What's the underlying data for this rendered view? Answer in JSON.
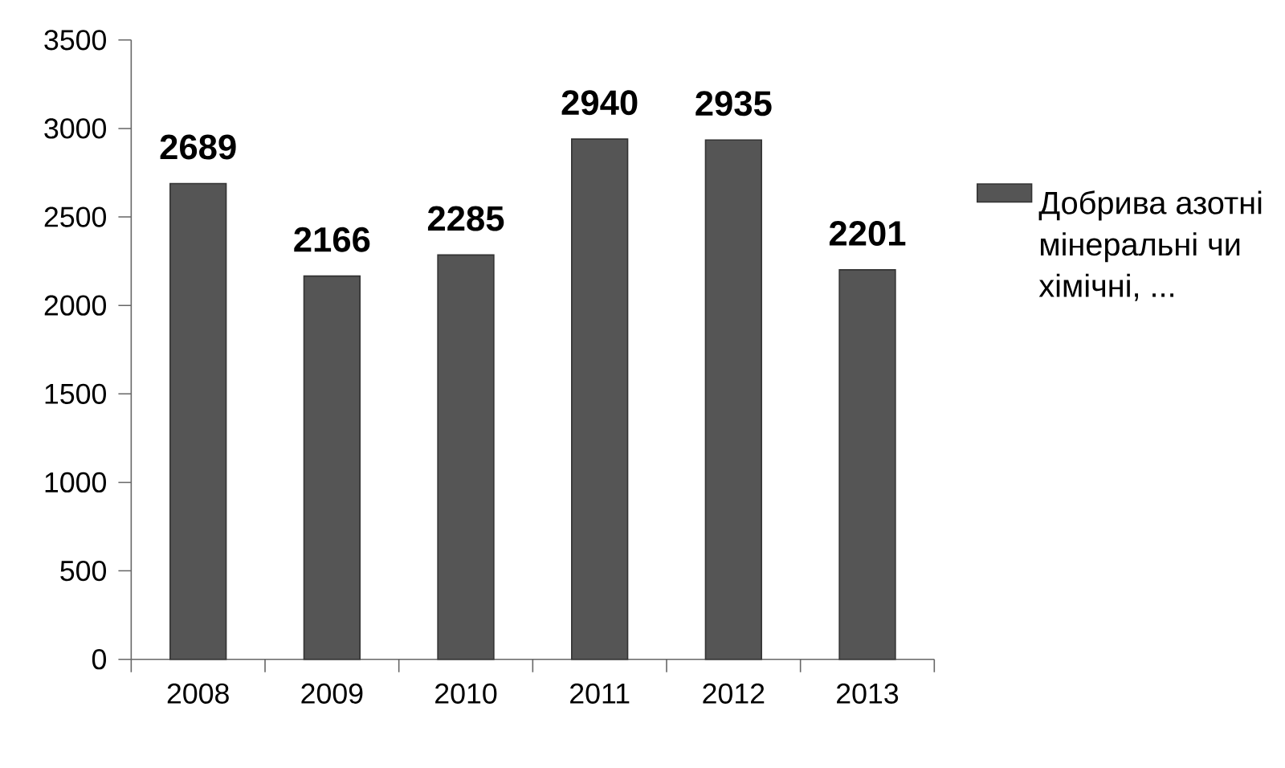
{
  "chart_data": {
    "type": "bar",
    "categories": [
      "2008",
      "2009",
      "2010",
      "2011",
      "2012",
      "2013"
    ],
    "series": [
      {
        "name": "Добрива азотні мінеральні чи хімічні, ...",
        "color": "#555555",
        "values": [
          2689,
          2166,
          2285,
          2940,
          2935,
          2201
        ]
      }
    ],
    "ylim": [
      0,
      3500
    ],
    "yticks": [
      0,
      500,
      1000,
      1500,
      2000,
      2500,
      3000,
      3500
    ],
    "grid": false,
    "legend": "right",
    "data_labels": true
  }
}
